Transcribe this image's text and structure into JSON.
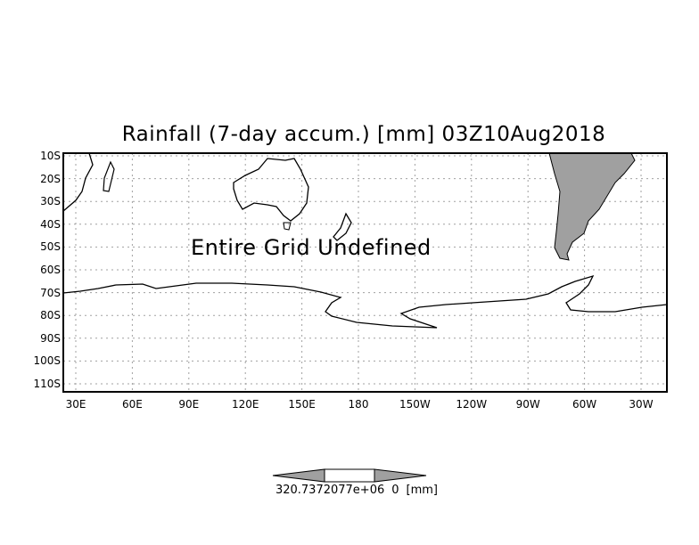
{
  "title": "Rainfall (7-day accum.) [mm] 03Z10Aug2018",
  "message": "Entire Grid Undefined",
  "lat_labels": [
    "10S",
    "20S",
    "30S",
    "40S",
    "50S",
    "60S",
    "70S",
    "80S",
    "90S",
    "100S",
    "110S"
  ],
  "lon_labels": [
    "30E",
    "60E",
    "90E",
    "120E",
    "150E",
    "180",
    "150W",
    "120W",
    "90W",
    "60W",
    "30W"
  ],
  "colorbar": {
    "value_label": "320.7372077e+06",
    "overlap_label": "0",
    "unit_label": "[mm]"
  },
  "colors": {
    "land_fill": "#a0a0a0",
    "grid": "#a0a0a0",
    "colorbar_arrows": "#a0a0a0"
  }
}
